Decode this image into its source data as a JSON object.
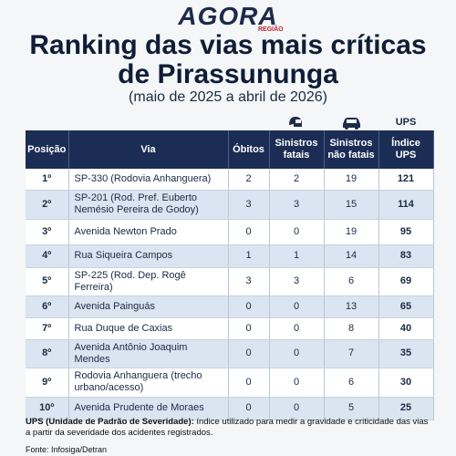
{
  "header": {
    "logo": "AGORA",
    "logo_sub": "REGIÃO",
    "title_1": "Ranking das vias mais críticas",
    "title_2": "de Pirassununga",
    "subtitle": "(maio de 2025 a abril de 2026)"
  },
  "table": {
    "top_label": "UPS",
    "columns": [
      "Posição",
      "Via",
      "Óbitos",
      "Sinistros fatais",
      "Sinistros não fatais",
      "Índice UPS"
    ],
    "rows": [
      [
        "1º",
        "SP-330 (Rodovia Anhanguera)",
        2,
        2,
        19,
        121
      ],
      [
        "2º",
        "SP-201 (Rod. Pref. Euberto Nemésio Pereira de Godoy)",
        3,
        3,
        15,
        114
      ],
      [
        "3º",
        "Avenida Newton Prado",
        0,
        0,
        19,
        95
      ],
      [
        "4º",
        "Rua Siqueira Campos",
        1,
        1,
        14,
        83
      ],
      [
        "5º",
        "SP-225 (Rod. Dep. Rogê Ferreira)",
        3,
        3,
        6,
        69
      ],
      [
        "6º",
        "Avenida Painguás",
        0,
        0,
        13,
        65
      ],
      [
        "7º",
        "Rua Duque de Caxias",
        0,
        0,
        8,
        40
      ],
      [
        "8º",
        "Avenida Antônio Joaquim Mendes",
        0,
        0,
        7,
        35
      ],
      [
        "9º",
        "Rodovia Anhanguera (trecho urbano/acesso)",
        0,
        0,
        6,
        30
      ],
      [
        "10º",
        "Avenida Prudente de Moraes",
        0,
        0,
        5,
        25
      ]
    ]
  },
  "footnote": {
    "term": "UPS (Unidade de Padrão de Severidade):",
    "text": "índice utilizado para medir a gravidade e criticidade das vias a partir da severidade dos acidentes registrados."
  },
  "source": "Fonte: Infosiga/Detran"
}
